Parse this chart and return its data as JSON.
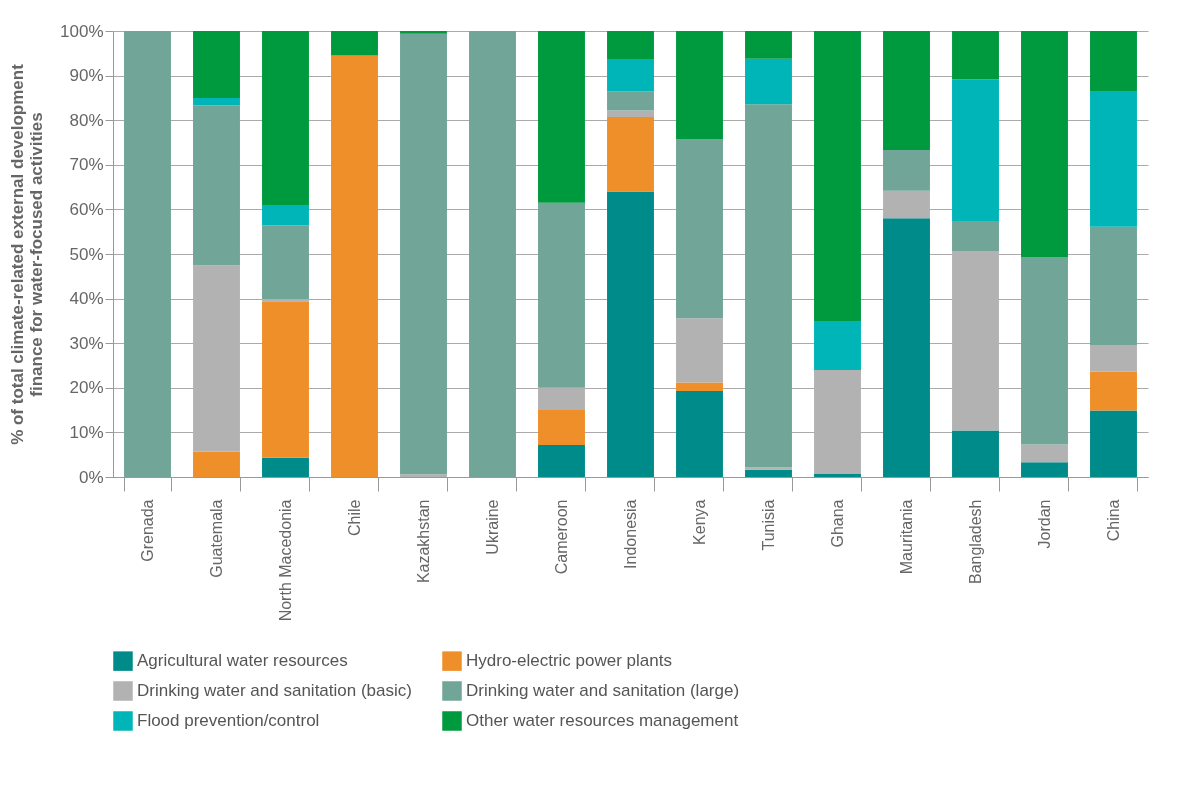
{
  "chart_data": {
    "type": "bar",
    "stacked": true,
    "ylabel": "% of total climate-related external development finance for water-focused activities",
    "categories": [
      "Grenada",
      "Guatemala",
      "North Macedonia",
      "Chile",
      "Kazakhstan",
      "Ukraine",
      "Cameroon",
      "Indonesia",
      "Kenya",
      "Tunisia",
      "Ghana",
      "Mauritania",
      "Bangladesh",
      "Jordan",
      "China"
    ],
    "series": [
      {
        "name": "Agricultural water resources",
        "color": "#008b8b",
        "values": [
          0,
          0,
          4.3,
          0,
          0,
          0,
          7.2,
          64,
          19.3,
          1.6,
          0.7,
          58,
          10.4,
          3.3,
          14.9
        ]
      },
      {
        "name": "Hydro-electric power plants",
        "color": "#ef8f2a",
        "values": [
          0,
          5.7,
          35.1,
          94.5,
          0,
          0,
          7.8,
          16.7,
          1.9,
          0,
          0,
          0,
          0,
          0,
          8.7
        ]
      },
      {
        "name": "Drinking water and sanitation (basic)",
        "color": "#b2b2b2",
        "values": [
          0,
          41.8,
          0.5,
          0,
          0.6,
          0,
          5,
          1.5,
          14.4,
          0.6,
          23.3,
          6.2,
          40.3,
          4,
          6
        ]
      },
      {
        "name": "Drinking water and sanitation (large)",
        "color": "#70a597",
        "values": [
          100,
          35.8,
          16.5,
          0,
          98.8,
          100,
          41.5,
          4.3,
          40.1,
          81.4,
          0,
          9.1,
          6.7,
          42,
          26.5
        ]
      },
      {
        "name": "Flood prevention/control",
        "color": "#00b5b8",
        "values": [
          0,
          1.7,
          4.6,
          0,
          0,
          0,
          0,
          7.2,
          0,
          10.2,
          11,
          0,
          31.7,
          0,
          30.3
        ]
      },
      {
        "name": "Other water resources management",
        "color": "#009a3e",
        "values": [
          0,
          15,
          39,
          5.5,
          0.6,
          0,
          38.5,
          6.3,
          24.3,
          6.2,
          65,
          26.7,
          10.9,
          50.7,
          13.6
        ]
      }
    ],
    "ylim": [
      0,
      100
    ],
    "yticks": [
      {
        "value": 0,
        "label": "0%"
      },
      {
        "value": 10,
        "label": "10%"
      },
      {
        "value": 20,
        "label": "20%"
      },
      {
        "value": 30,
        "label": "30%"
      },
      {
        "value": 40,
        "label": "40%"
      },
      {
        "value": 50,
        "label": "50%"
      },
      {
        "value": 60,
        "label": "60%"
      },
      {
        "value": 70,
        "label": "70%"
      },
      {
        "value": 80,
        "label": "80%"
      },
      {
        "value": 90,
        "label": "90%"
      },
      {
        "value": 100,
        "label": "100%"
      }
    ],
    "grid": "y",
    "legend": "bottom"
  }
}
